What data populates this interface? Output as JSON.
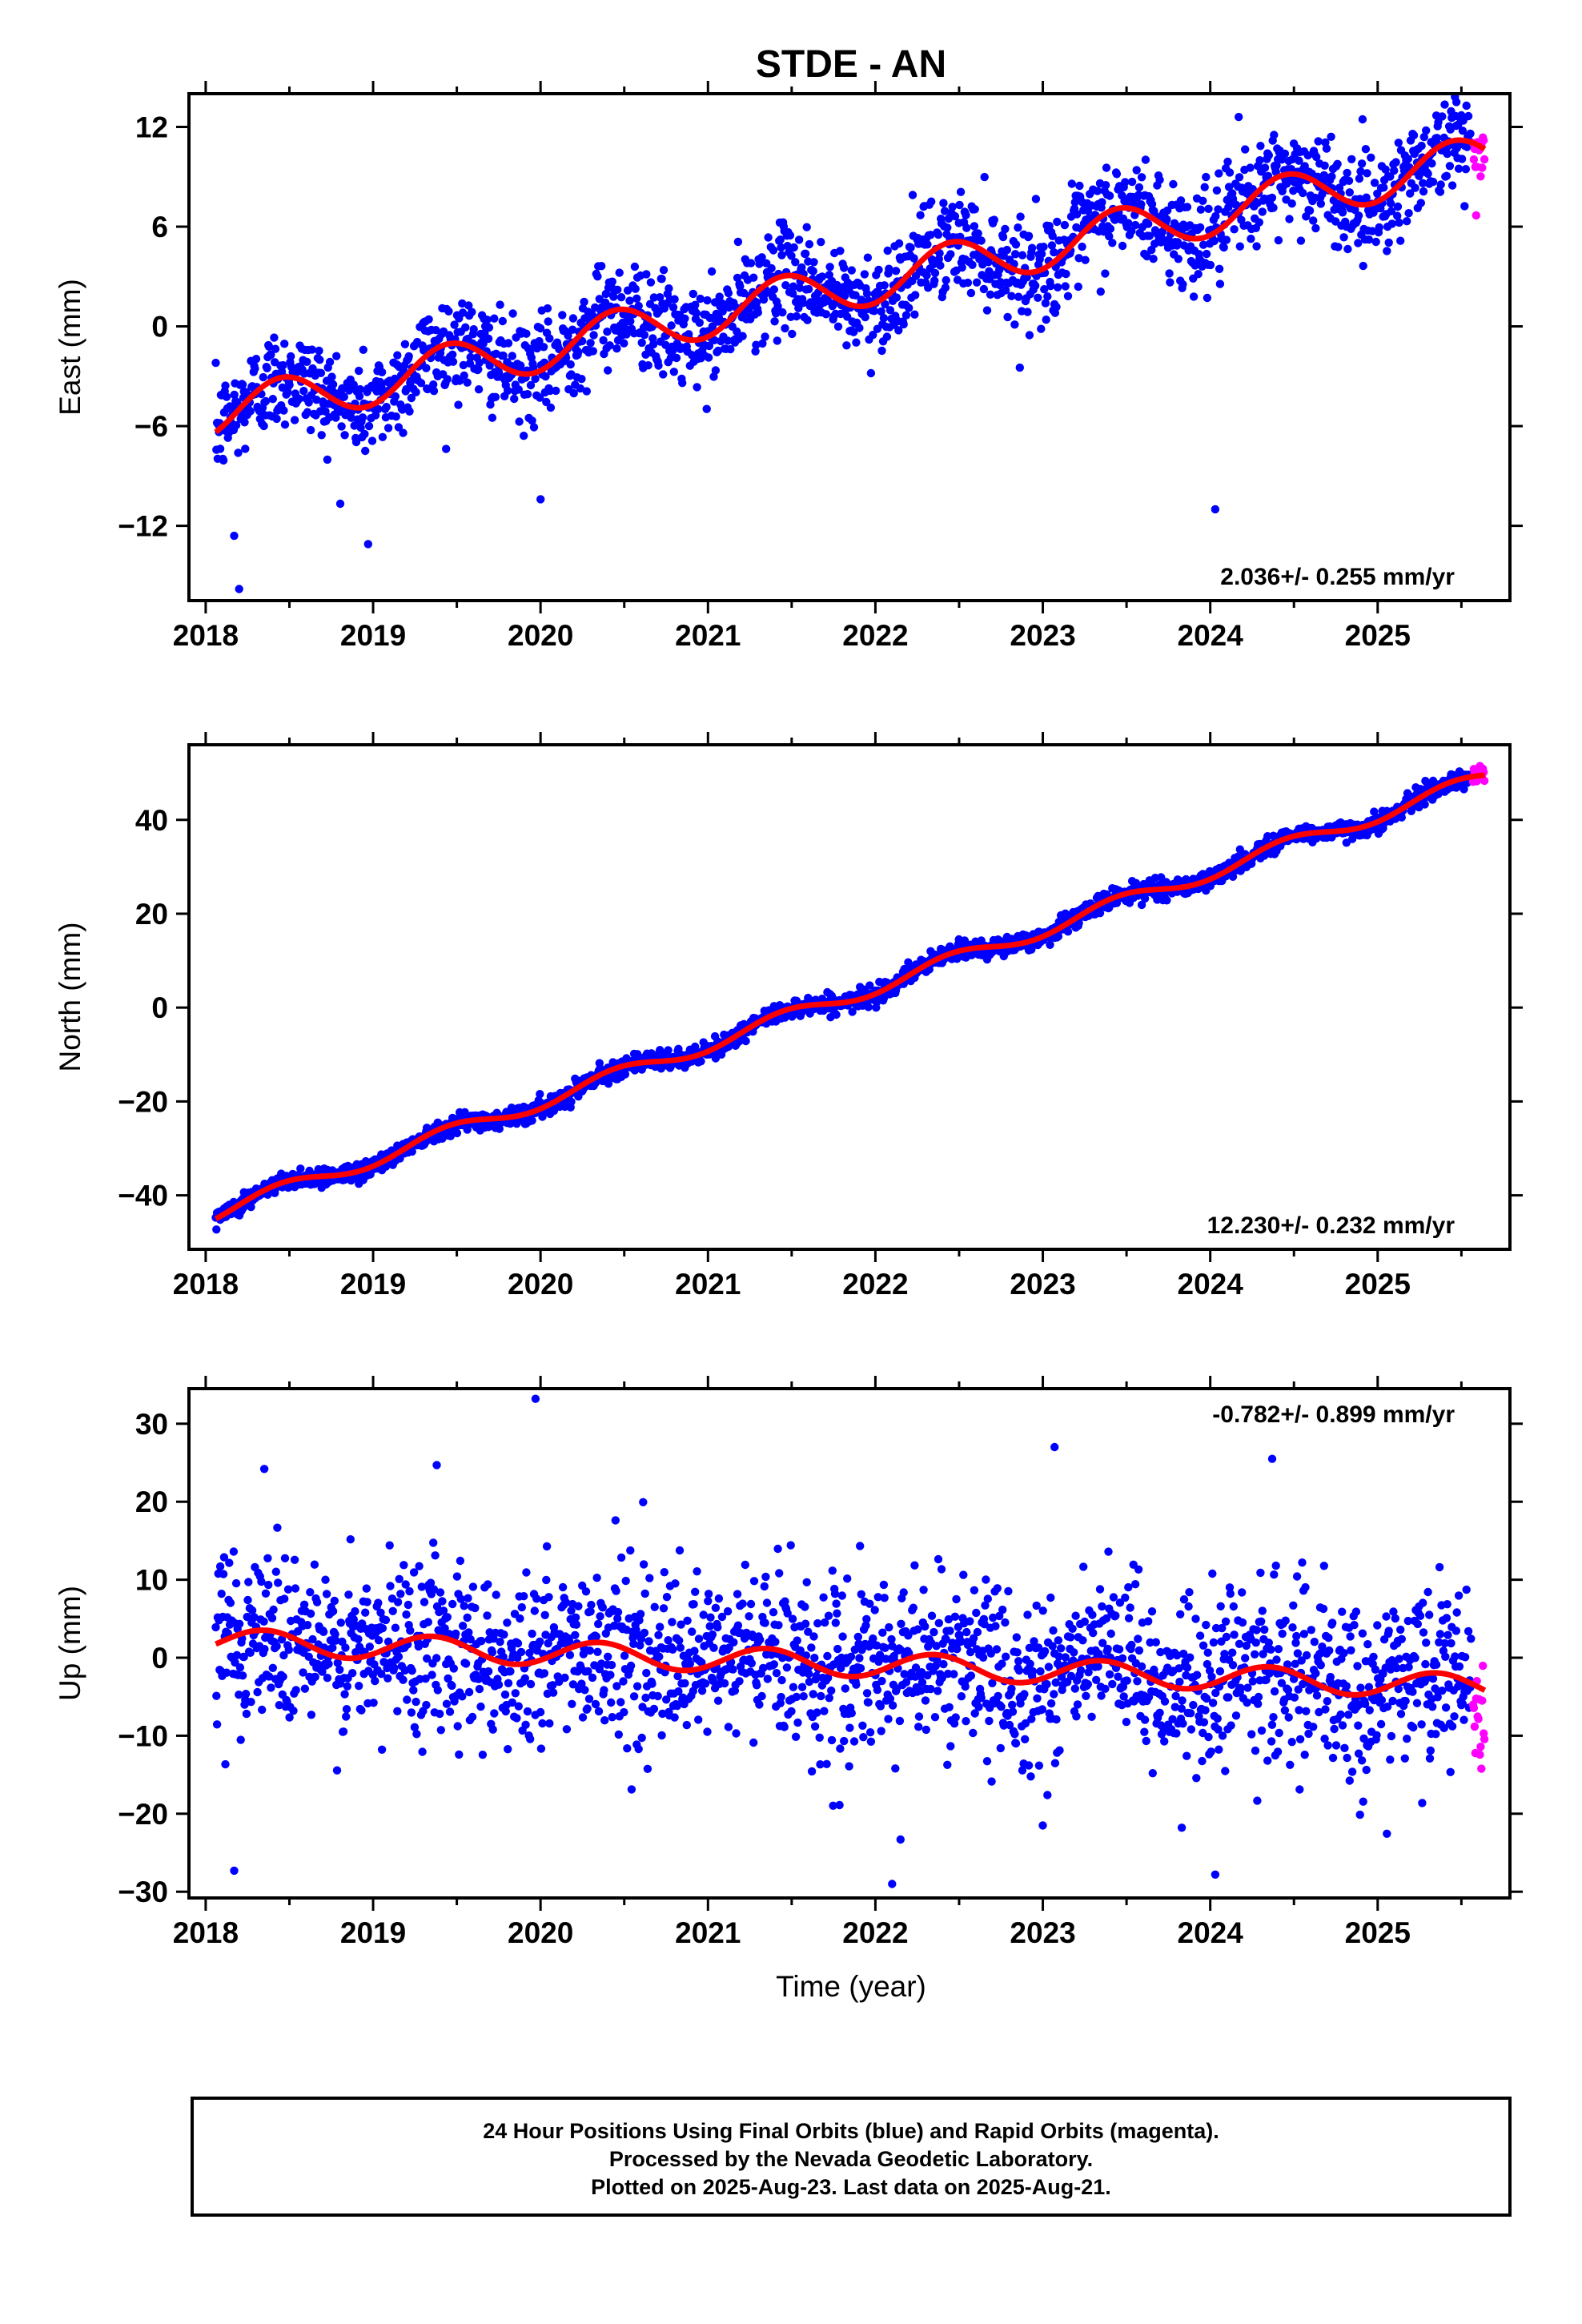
{
  "title": "STDE - AN",
  "colors": {
    "final": "#0000ff",
    "rapid": "#ff00ff",
    "fit": "#ff0000",
    "axis": "#000000"
  },
  "xlabel": "Time (year)",
  "xticks": [
    "2018",
    "2019",
    "2020",
    "2021",
    "2022",
    "2023",
    "2024",
    "2025"
  ],
  "panels": [
    {
      "id": "east",
      "ylabel": "East (mm)",
      "ylim": [
        -16.5,
        14.0
      ],
      "yticks": [
        12,
        6,
        0,
        -6,
        -12
      ],
      "ytick_labels": [
        "12",
        "6",
        "0",
        "−6",
        "−12"
      ],
      "rate_text": "2.036+/- 0.255 mm/yr",
      "rate_position": "bottom-right",
      "trend": {
        "rate": 2.036,
        "y2018": -5.4,
        "amp": 1.4,
        "phase": 0.2
      },
      "noise": 1.5,
      "outliers": [
        [
          2018.17,
          -12.6
        ],
        [
          2018.2,
          -15.8
        ],
        [
          2018.97,
          -13.1
        ],
        [
          2020.0,
          -10.4
        ],
        [
          2024.03,
          -11.0
        ],
        [
          2024.17,
          12.6
        ],
        [
          2025.47,
          13.5
        ]
      ]
    },
    {
      "id": "north",
      "ylabel": "North (mm)",
      "ylim": [
        -51.5,
        56.0
      ],
      "yticks": [
        40,
        20,
        0,
        -20,
        -40
      ],
      "ytick_labels": [
        "40",
        "20",
        "0",
        "−20",
        "−40"
      ],
      "rate_text": "12.230+/- 0.232 mm/yr",
      "rate_position": "bottom-right",
      "trend": {
        "rate": 12.23,
        "y2018": -44.5,
        "amp": 1.6,
        "phase": 0.2
      },
      "noise": 1.0,
      "outliers": []
    },
    {
      "id": "up",
      "ylabel": "Up (mm)",
      "ylim": [
        -30.8,
        34.5
      ],
      "yticks": [
        30,
        20,
        10,
        0,
        -10,
        -20,
        -30
      ],
      "ytick_labels": [
        "30",
        "20",
        "10",
        "0",
        "−10",
        "−20",
        "−30"
      ],
      "rate_text": "-0.782+/- 0.899 mm/yr",
      "rate_position": "top-right",
      "trend": {
        "rate": -0.782,
        "y2018": 2.2,
        "amp": 1.6,
        "phase": 0.1
      },
      "noise": 5.5,
      "outliers": [
        [
          2018.17,
          -27.3
        ],
        [
          2019.97,
          33.2
        ],
        [
          2022.1,
          -29.0
        ],
        [
          2022.15,
          -23.3
        ],
        [
          2023.0,
          -21.5
        ],
        [
          2023.07,
          27.0
        ],
        [
          2023.83,
          -21.8
        ],
        [
          2024.03,
          -27.8
        ],
        [
          2024.37,
          25.5
        ],
        [
          2018.35,
          24.2
        ],
        [
          2019.38,
          24.7
        ]
      ]
    }
  ],
  "rapid": {
    "x_start": 2025.57,
    "x_end": 2025.64
  },
  "chart_data": {
    "type": "scatter",
    "title": "STDE - AN",
    "xlabel": "Time (year)",
    "xlim": [
      2017.9,
      2025.79
    ],
    "series": [
      {
        "name": "East (mm)",
        "ylim": [
          -16.5,
          14.0
        ],
        "rate_mm_yr": 2.036,
        "rate_sigma": 0.255
      },
      {
        "name": "North (mm)",
        "ylim": [
          -51.5,
          56.0
        ],
        "rate_mm_yr": 12.23,
        "rate_sigma": 0.232
      },
      {
        "name": "Up (mm)",
        "ylim": [
          -30.8,
          34.5
        ],
        "rate_mm_yr": -0.782,
        "rate_sigma": 0.899
      }
    ]
  },
  "caption": {
    "line1": "24 Hour Positions Using Final Orbits (blue) and Rapid Orbits (magenta).",
    "line2": "Processed by the Nevada Geodetic Laboratory.",
    "line3": "Plotted on 2025-Aug-23. Last data on 2025-Aug-21."
  }
}
